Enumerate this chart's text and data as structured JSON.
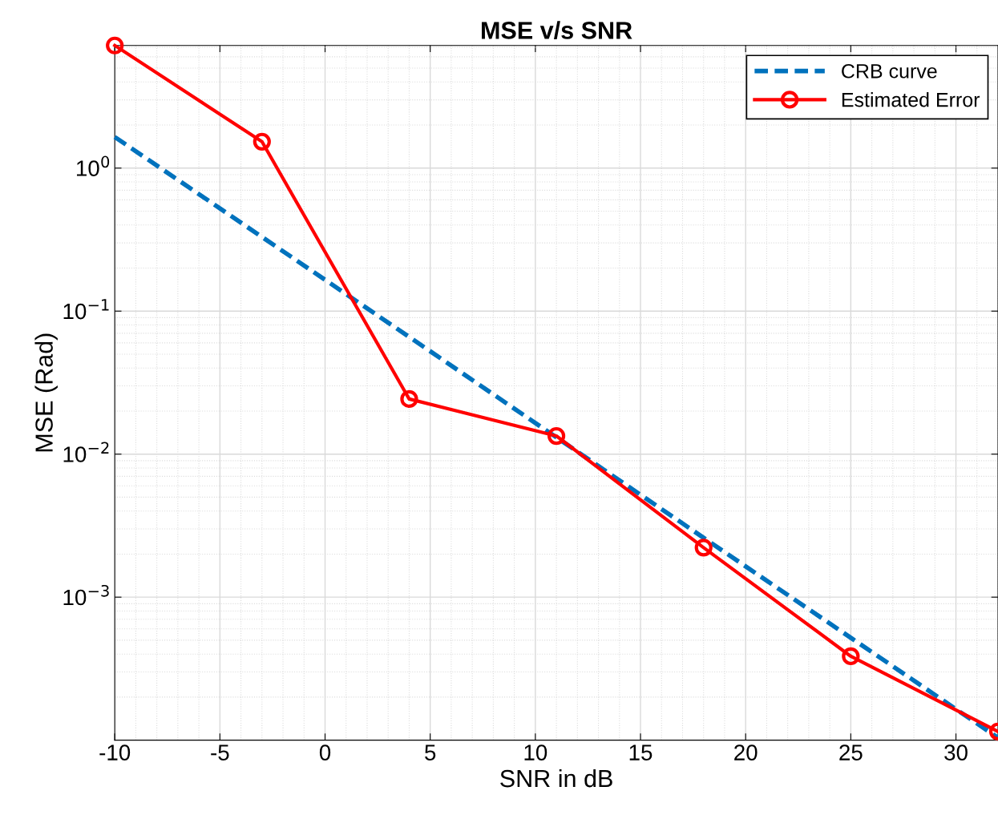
{
  "chart_data": {
    "type": "line",
    "title": "MSE v/s SNR",
    "xlabel": "SNR in dB",
    "ylabel": "MSE (Rad)",
    "log": "y",
    "x": [
      -10,
      -3,
      4,
      11,
      18,
      25,
      32
    ],
    "series": [
      {
        "name": "CRB curve",
        "color": "#0072bd",
        "line_style": "dashed",
        "marker": "none",
        "values": [
          1.65,
          0.33,
          0.066,
          0.0131,
          0.0026,
          0.00052,
          0.000104
        ]
      },
      {
        "name": "Estimated Error",
        "color": "#ff0000",
        "line_style": "solid",
        "marker": "circle",
        "values": [
          7.2,
          1.53,
          0.0243,
          0.0134,
          0.00222,
          0.000386,
          0.000115
        ]
      }
    ],
    "xlim": [
      -10,
      32
    ],
    "xticks": [
      -10,
      -5,
      0,
      5,
      10,
      15,
      20,
      25,
      30
    ],
    "ylim": [
      0.0001,
      7.2
    ],
    "yticks": [
      {
        "value": 0.001,
        "label": "10$^{−3}$"
      },
      {
        "value": 0.01,
        "label": "10$^{−2}$"
      },
      {
        "value": 0.1,
        "label": "10$^{−1}$"
      },
      {
        "value": 1,
        "label": "10$^{0}$"
      }
    ],
    "grid": true,
    "legend": "top right"
  }
}
